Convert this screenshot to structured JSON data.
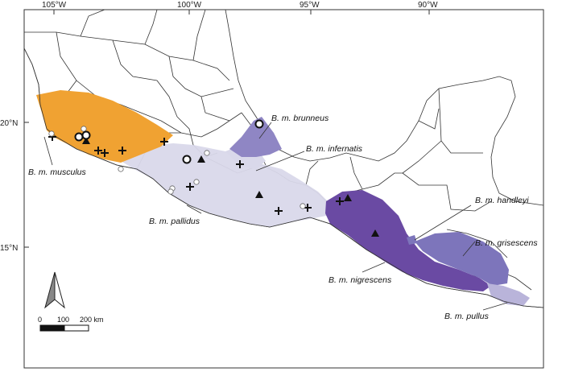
{
  "axes": {
    "longitude_ticks": [
      "105°W",
      "100°W",
      "95°W",
      "90°W"
    ],
    "latitude_ticks": [
      "20°N",
      "15°N"
    ]
  },
  "subspecies": [
    {
      "id": "musculus",
      "label": "B. m. musculus",
      "color": "#f0a232"
    },
    {
      "id": "pallidus",
      "label": "B. m. pallidus",
      "color": "#d9d8ea"
    },
    {
      "id": "brunneus",
      "label": "B. m. brunneus",
      "color": "#8f86c4"
    },
    {
      "id": "infernatis",
      "label": "B. m. infernatis",
      "color": "#d9d8ea"
    },
    {
      "id": "handleyi",
      "label": "B. m. handleyi",
      "color": "#7d75bb"
    },
    {
      "id": "grisescens",
      "label": "B. m. grisescens",
      "color": "#7d75bb"
    },
    {
      "id": "nigrescens",
      "label": "B. m. nigrescens",
      "color": "#6a4aa3"
    },
    {
      "id": "pullus",
      "label": "B. m. pullus",
      "color": "#b9b4da"
    }
  ],
  "scale_bar": {
    "labels": [
      "0",
      "100",
      "200 km"
    ]
  },
  "north_arrow": {
    "name": "north-arrow"
  },
  "icons": {
    "cross": "plus-marker-icon",
    "triangle": "triangle-marker-icon",
    "circle": "circle-marker-icon",
    "ring": "ring-marker-icon"
  }
}
